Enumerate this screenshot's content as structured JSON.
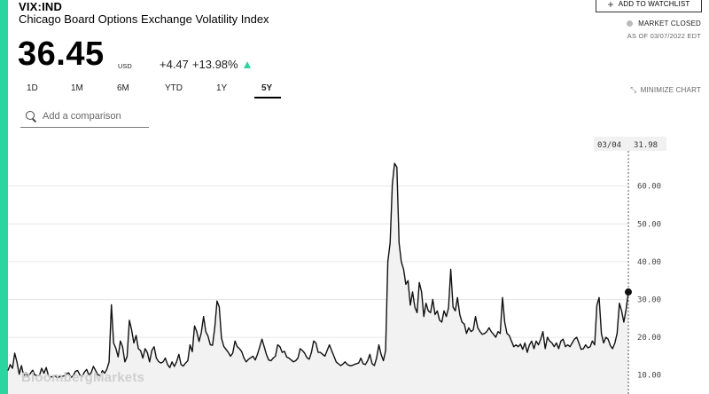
{
  "header": {
    "ticker": "VIX:IND",
    "name": "Chicago Board Options Exchange Volatility Index",
    "watchlist_label": "ADD TO WATCHLIST",
    "market_status": "MARKET CLOSED",
    "as_of": "AS OF 03/07/2022 EDT"
  },
  "quote": {
    "price": "36.45",
    "currency": "USD",
    "change": "+4.47",
    "change_pct": "+13.98%"
  },
  "ranges": {
    "tabs": [
      {
        "label": "1D"
      },
      {
        "label": "1M"
      },
      {
        "label": "6M"
      },
      {
        "label": "YTD"
      },
      {
        "label": "1Y"
      },
      {
        "label": "5Y"
      }
    ],
    "active": "5Y",
    "minimize_label": "MINIMIZE CHART"
  },
  "comparison": {
    "placeholder": "Add a comparison"
  },
  "colors": {
    "accent": "#2bd5a0",
    "line": "#111111",
    "area": "#f2f2f2"
  },
  "chart_data": {
    "type": "line",
    "y_axis_side": "right",
    "ylim": [
      5,
      74
    ],
    "yticks": [
      "10.00",
      "20.00",
      "30.00",
      "40.00",
      "50.00",
      "60.00"
    ],
    "crosshair": {
      "date": "03/04",
      "value": "31.98"
    },
    "series": [
      {
        "values": [
          11.2,
          12.8,
          11.8,
          15.8,
          13.5,
          10.2,
          12.5,
          9.8,
          10.6,
          9.6,
          10.5,
          11.3,
          10.0,
          9.9,
          9.9,
          11.8,
          10.5,
          12.0,
          9.8,
          9.5,
          9.6,
          9.8,
          9.2,
          9.6,
          9.6,
          9.8,
          10.3,
          10.6,
          9.4,
          9.8,
          11.0,
          11.2,
          10.0,
          9.6,
          10.8,
          11.5,
          10.0,
          10.6,
          12.3,
          11.2,
          10.1,
          9.8,
          11.2,
          10.5,
          11.6,
          13.5,
          28.6,
          18.5,
          17.1,
          14.8,
          19.0,
          17.5,
          13.5,
          14.9,
          24.5,
          22.0,
          18.5,
          20.5,
          17.0,
          16.5,
          14.5,
          17.0,
          16.0,
          13.5,
          16.5,
          17.5,
          14.5,
          13.6,
          13.2,
          13.5,
          14.5,
          12.8,
          12.0,
          13.5,
          12.3,
          13.5,
          15.5,
          12.8,
          12.4,
          13.2,
          13.8,
          18.0,
          16.2,
          23.0,
          21.5,
          18.9,
          21.2,
          25.5,
          21.5,
          20.3,
          18.0,
          17.9,
          22.5,
          29.6,
          28.0,
          19.8,
          17.6,
          16.8,
          16.0,
          15.0,
          15.8,
          19.0,
          17.5,
          17.0,
          16.2,
          14.5,
          13.5,
          14.2,
          14.6,
          15.0,
          14.0,
          15.5,
          17.5,
          19.5,
          17.5,
          15.4,
          14.0,
          13.8,
          14.5,
          15.0,
          18.0,
          17.5,
          16.0,
          16.3,
          14.8,
          14.5,
          14.0,
          13.5,
          13.8,
          14.5,
          17.0,
          16.5,
          15.8,
          14.6,
          14.2,
          16.0,
          19.0,
          18.5,
          16.0,
          16.0,
          15.5,
          15.0,
          16.5,
          18.0,
          16.5,
          15.0,
          13.5,
          13.0,
          12.5,
          12.9,
          13.5,
          12.8,
          12.5,
          12.5,
          12.8,
          13.0,
          13.2,
          14.5,
          13.0,
          12.8,
          13.8,
          15.5,
          13.0,
          12.5,
          14.5,
          18.0,
          15.5,
          13.8,
          16.5,
          40.0,
          45.0,
          60.5,
          66.0,
          65.0,
          45.0,
          40.0,
          38.0,
          34.0,
          35.0,
          28.5,
          32.0,
          28.0,
          26.5,
          34.5,
          32.0,
          25.5,
          29.0,
          27.0,
          26.5,
          30.0,
          26.0,
          27.0,
          24.5,
          24.0,
          27.0,
          25.5,
          27.8,
          38.0,
          28.0,
          27.0,
          30.5,
          26.0,
          24.0,
          23.5,
          21.0,
          22.5,
          21.5,
          22.0,
          25.5,
          22.5,
          21.5,
          20.8,
          21.0,
          21.5,
          22.5,
          21.5,
          20.8,
          20.0,
          21.5,
          21.0,
          30.5,
          24.0,
          21.0,
          20.5,
          19.0,
          17.5,
          18.0,
          17.5,
          18.2,
          16.8,
          18.5,
          16.0,
          18.0,
          19.0,
          17.0,
          19.0,
          18.0,
          19.5,
          21.5,
          17.0,
          20.0,
          19.0,
          18.5,
          17.5,
          18.5,
          17.0,
          19.0,
          19.5,
          17.5,
          18.0,
          17.5,
          18.5,
          19.5,
          20.0,
          18.5,
          16.8,
          17.0,
          18.0,
          17.2,
          17.5,
          19.0,
          18.0,
          28.5,
          30.5,
          21.0,
          18.5,
          20.0,
          19.5,
          17.8,
          17.0,
          18.5,
          21.0,
          29.0,
          27.0,
          24.0,
          27.5,
          31.98
        ]
      }
    ]
  },
  "watermark": "BloombergMarkets"
}
